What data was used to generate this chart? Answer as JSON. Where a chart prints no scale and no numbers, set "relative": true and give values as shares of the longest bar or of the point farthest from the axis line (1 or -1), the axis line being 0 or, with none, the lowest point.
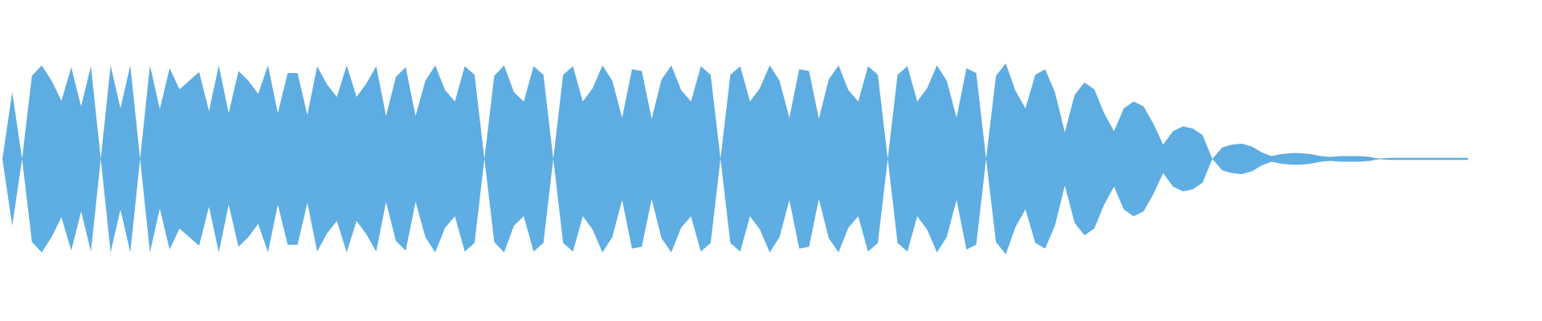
{
  "chart_data": {
    "type": "area",
    "relative": true,
    "legend": false,
    "categories": [
      null,
      null,
      null,
      null,
      null,
      null,
      null,
      null,
      null,
      null,
      null,
      null,
      null,
      null,
      null,
      null,
      null,
      null,
      null,
      null,
      null,
      null,
      null,
      null,
      null,
      null,
      null,
      null,
      null,
      null,
      null,
      null,
      null,
      null,
      null,
      null,
      null,
      null,
      null,
      null,
      null,
      null,
      null,
      null,
      null,
      null,
      null,
      null,
      null,
      null,
      null,
      null,
      null,
      null,
      null,
      null,
      null,
      null,
      null,
      null,
      null,
      null,
      null,
      null,
      null,
      null,
      null,
      null,
      null,
      null,
      null,
      null,
      null,
      null,
      null,
      null,
      null,
      null,
      null,
      null,
      null,
      null,
      null,
      null,
      null,
      null,
      null,
      null,
      null,
      null,
      null,
      null,
      null,
      null,
      null,
      null,
      null,
      null,
      null,
      null,
      null,
      null,
      null,
      null,
      null,
      null,
      null,
      null,
      null,
      null,
      null,
      null,
      null,
      null,
      null,
      null,
      null,
      null,
      null,
      null,
      null,
      null,
      null,
      null,
      null,
      null,
      null,
      null,
      null,
      null,
      null,
      null,
      null,
      null,
      null,
      null,
      null,
      null,
      null,
      null,
      null,
      null,
      null,
      null,
      null,
      null,
      null,
      null,
      null,
      null
    ],
    "series": [
      {
        "color": "#5dade2",
        "values": [
          0,
          0.7,
          0,
          0.87,
          0.98,
          0.82,
          0.61,
          0.96,
          0.55,
          0.97,
          0,
          0.98,
          0.53,
          0.98,
          0,
          0.98,
          0.52,
          0.95,
          0.73,
          0.82,
          0.91,
          0.5,
          0.98,
          0.48,
          0.92,
          0.82,
          0.68,
          0.98,
          0.48,
          0.9,
          0.9,
          0.46,
          0.97,
          0.78,
          0.65,
          0.98,
          0.65,
          0.79,
          0.97,
          0.45,
          0.86,
          0.96,
          0.45,
          0.82,
          0.98,
          0.72,
          0.6,
          0.97,
          0.88,
          0,
          0.87,
          0.98,
          0.7,
          0.6,
          0.97,
          0.88,
          0,
          0.88,
          0.97,
          0.6,
          0.74,
          0.98,
          0.82,
          0.43,
          0.94,
          0.92,
          0.42,
          0.83,
          0.98,
          0.72,
          0.6,
          0.97,
          0.88,
          0,
          0.88,
          0.97,
          0.6,
          0.74,
          0.98,
          0.82,
          0.43,
          0.94,
          0.92,
          0.42,
          0.83,
          0.98,
          0.72,
          0.6,
          0.97,
          0.88,
          0,
          0.88,
          0.97,
          0.6,
          0.74,
          0.98,
          0.82,
          0.43,
          0.95,
          0.9,
          0,
          0.87,
          1,
          0.71,
          0.53,
          0.88,
          0.94,
          0.7,
          0.28,
          0.67,
          0.8,
          0.73,
          0.48,
          0.29,
          0.53,
          0.6,
          0.55,
          0.37,
          0.15,
          0.29,
          0.34,
          0.32,
          0.25,
          0,
          0.12,
          0.15,
          0.16,
          0.13,
          0.07,
          0.03,
          0.05,
          0.06,
          0.06,
          0.05,
          0.03,
          0.02,
          0.03,
          0.03,
          0.03,
          0.02,
          0,
          0.01,
          0.01,
          0.01,
          0.01,
          0.01,
          0.01,
          0.01,
          0.01,
          0.01
        ]
      },
      {
        "color": "#5eaee3",
        "values": [
          0,
          -0.7,
          0,
          -0.87,
          -0.98,
          -0.82,
          -0.61,
          -0.96,
          -0.55,
          -0.97,
          0,
          -0.98,
          -0.53,
          -0.98,
          0,
          -0.98,
          -0.52,
          -0.95,
          -0.73,
          -0.82,
          -0.91,
          -0.5,
          -0.98,
          -0.48,
          -0.92,
          -0.82,
          -0.68,
          -0.98,
          -0.48,
          -0.9,
          -0.9,
          -0.46,
          -0.97,
          -0.78,
          -0.65,
          -0.98,
          -0.65,
          -0.79,
          -0.97,
          -0.45,
          -0.86,
          -0.96,
          -0.45,
          -0.82,
          -0.98,
          -0.72,
          -0.6,
          -0.97,
          -0.88,
          0,
          -0.87,
          -0.98,
          -0.7,
          -0.6,
          -0.97,
          -0.88,
          0,
          -0.88,
          -0.97,
          -0.6,
          -0.74,
          -0.98,
          -0.82,
          -0.43,
          -0.94,
          -0.92,
          -0.42,
          -0.83,
          -0.98,
          -0.72,
          -0.6,
          -0.97,
          -0.88,
          0,
          -0.88,
          -0.97,
          -0.6,
          -0.74,
          -0.98,
          -0.82,
          -0.43,
          -0.94,
          -0.92,
          -0.42,
          -0.83,
          -0.98,
          -0.72,
          -0.6,
          -0.97,
          -0.88,
          0,
          -0.88,
          -0.97,
          -0.6,
          -0.74,
          -0.98,
          -0.82,
          -0.43,
          -0.95,
          -0.9,
          0,
          -0.87,
          -1,
          -0.71,
          -0.53,
          -0.88,
          -0.94,
          -0.7,
          -0.28,
          -0.67,
          -0.8,
          -0.73,
          -0.48,
          -0.29,
          -0.53,
          -0.6,
          -0.55,
          -0.37,
          -0.15,
          -0.29,
          -0.34,
          -0.32,
          -0.25,
          0,
          -0.12,
          -0.15,
          -0.16,
          -0.13,
          -0.07,
          -0.03,
          -0.05,
          -0.06,
          -0.06,
          -0.05,
          -0.03,
          -0.02,
          -0.03,
          -0.03,
          -0.03,
          -0.02,
          0,
          -0.01,
          -0.01,
          -0.01,
          -0.01,
          -0.01,
          -0.01,
          -0.01,
          -0.01,
          -0.01
        ]
      }
    ]
  }
}
